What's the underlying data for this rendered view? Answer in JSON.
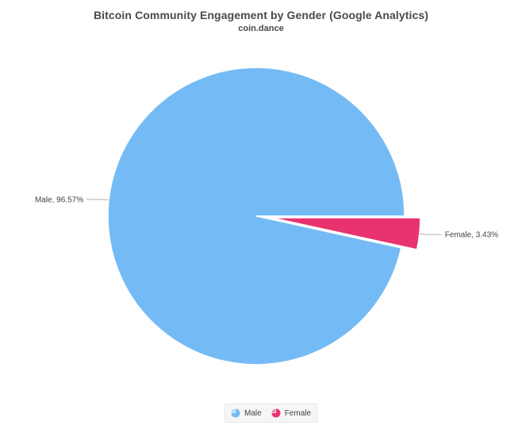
{
  "chart_data": {
    "type": "pie",
    "title": "Bitcoin Community Engagement by Gender (Google Analytics)",
    "subtitle": "coin.dance",
    "slices": [
      {
        "name": "Male",
        "value": 96.57,
        "label": "Male, 96.57%",
        "color": "#74bbf5",
        "exploded": false
      },
      {
        "name": "Female",
        "value": 3.43,
        "label": "Female, 3.43%",
        "color": "#e8336f",
        "exploded": true
      }
    ],
    "legend": {
      "position": "bottom-center",
      "items": [
        {
          "name": "Male",
          "color": "#74bbf5"
        },
        {
          "name": "Female",
          "color": "#e8336f"
        }
      ]
    }
  }
}
